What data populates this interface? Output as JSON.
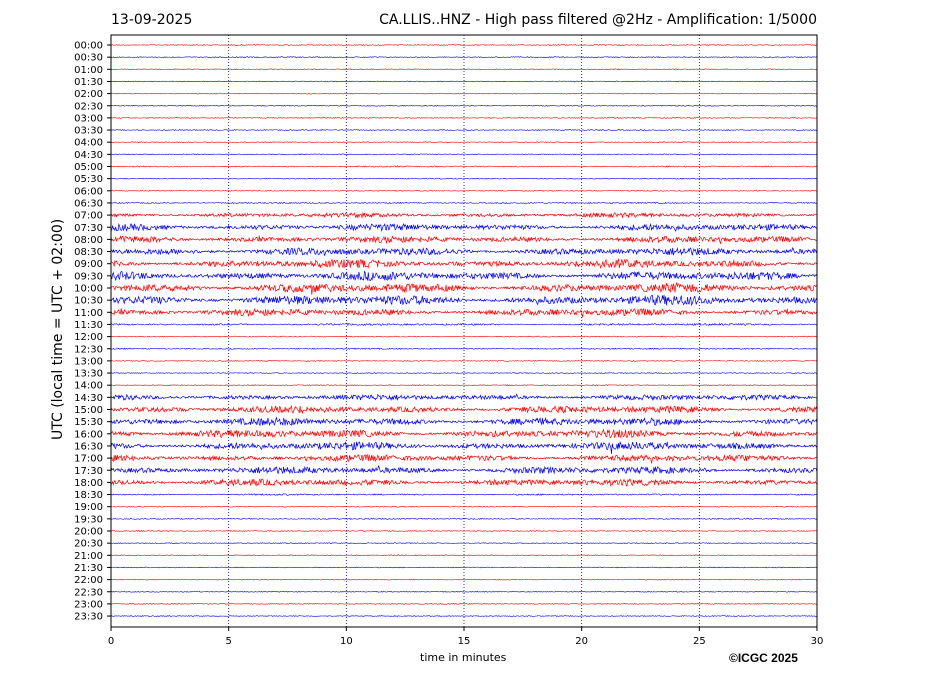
{
  "header": {
    "date": "13-09-2025",
    "title": "CA.LLIS..HNZ - High pass filtered @2Hz - Amplification: 1/5000"
  },
  "footer": {
    "copyright": "©ICGC 2025"
  },
  "chart_data": {
    "type": "line",
    "subtype": "helicorder",
    "xlabel": "time in minutes",
    "ylabel": "UTC (local time = UTC + 02:00)",
    "xlim": [
      0,
      30
    ],
    "x_ticks": [
      0,
      5,
      10,
      15,
      20,
      25,
      30
    ],
    "vertical_gridlines": [
      5,
      10,
      15,
      20,
      25
    ],
    "colors": {
      "red": "#ff0000",
      "blue": "#0000ff",
      "grid": "#000080"
    },
    "rows": [
      {
        "label": "00:00",
        "color": "red",
        "activity": 0.02
      },
      {
        "label": "00:30",
        "color": "blue",
        "activity": 0.03
      },
      {
        "label": "01:00",
        "color": "red",
        "activity": 0.02
      },
      {
        "label": "01:30",
        "color": "blue",
        "activity": 0.02
      },
      {
        "label": "02:00",
        "color": "red",
        "activity": 0.02
      },
      {
        "label": "02:30",
        "color": "blue",
        "activity": 0.03
      },
      {
        "label": "03:00",
        "color": "red",
        "activity": 0.02
      },
      {
        "label": "03:30",
        "color": "blue",
        "activity": 0.03
      },
      {
        "label": "04:00",
        "color": "red",
        "activity": 0.02
      },
      {
        "label": "04:30",
        "color": "blue",
        "activity": 0.03
      },
      {
        "label": "05:00",
        "color": "red",
        "activity": 0.05
      },
      {
        "label": "05:30",
        "color": "blue",
        "activity": 0.03
      },
      {
        "label": "06:00",
        "color": "red",
        "activity": 0.02
      },
      {
        "label": "06:30",
        "color": "blue",
        "activity": 0.05
      },
      {
        "label": "07:00",
        "color": "red",
        "activity": 0.35
      },
      {
        "label": "07:30",
        "color": "blue",
        "activity": 0.55
      },
      {
        "label": "08:00",
        "color": "red",
        "activity": 0.55
      },
      {
        "label": "08:30",
        "color": "blue",
        "activity": 0.65
      },
      {
        "label": "09:00",
        "color": "red",
        "activity": 0.7
      },
      {
        "label": "09:30",
        "color": "blue",
        "activity": 0.75
      },
      {
        "label": "10:00",
        "color": "red",
        "activity": 0.8
      },
      {
        "label": "10:30",
        "color": "blue",
        "activity": 0.85
      },
      {
        "label": "11:00",
        "color": "red",
        "activity": 0.6
      },
      {
        "label": "11:30",
        "color": "blue",
        "activity": 0.12
      },
      {
        "label": "12:00",
        "color": "red",
        "activity": 0.03
      },
      {
        "label": "12:30",
        "color": "blue",
        "activity": 0.05
      },
      {
        "label": "13:00",
        "color": "red",
        "activity": 0.02
      },
      {
        "label": "13:30",
        "color": "blue",
        "activity": 0.02
      },
      {
        "label": "14:00",
        "color": "red",
        "activity": 0.02
      },
      {
        "label": "14:30",
        "color": "blue",
        "activity": 0.45
      },
      {
        "label": "15:00",
        "color": "red",
        "activity": 0.6
      },
      {
        "label": "15:30",
        "color": "blue",
        "activity": 0.65
      },
      {
        "label": "16:00",
        "color": "red",
        "activity": 0.7
      },
      {
        "label": "16:30",
        "color": "blue",
        "activity": 0.65
      },
      {
        "label": "17:00",
        "color": "red",
        "activity": 0.55
      },
      {
        "label": "17:30",
        "color": "blue",
        "activity": 0.6
      },
      {
        "label": "18:00",
        "color": "red",
        "activity": 0.55
      },
      {
        "label": "18:30",
        "color": "blue",
        "activity": 0.08
      },
      {
        "label": "19:00",
        "color": "red",
        "activity": 0.02
      },
      {
        "label": "19:30",
        "color": "blue",
        "activity": 0.04
      },
      {
        "label": "20:00",
        "color": "red",
        "activity": 0.02
      },
      {
        "label": "20:30",
        "color": "blue",
        "activity": 0.02
      },
      {
        "label": "21:00",
        "color": "red",
        "activity": 0.02
      },
      {
        "label": "21:30",
        "color": "blue",
        "activity": 0.02
      },
      {
        "label": "22:00",
        "color": "red",
        "activity": 0.02
      },
      {
        "label": "22:30",
        "color": "blue",
        "activity": 0.02
      },
      {
        "label": "23:00",
        "color": "red",
        "activity": 0.02
      },
      {
        "label": "23:30",
        "color": "blue",
        "activity": 0.02
      }
    ]
  }
}
